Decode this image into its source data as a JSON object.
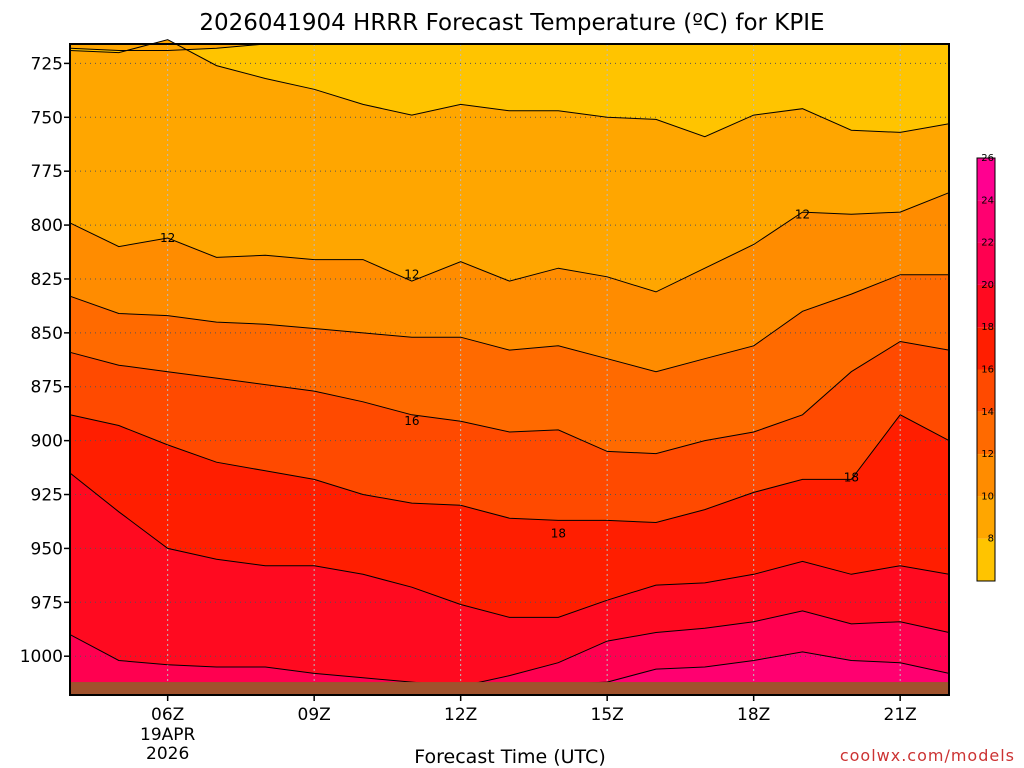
{
  "chart_data": {
    "type": "contour",
    "title": "2026041904 HRRR Forecast Temperature (ºC) for KPIE",
    "xlabel": "Forecast Time (UTC)",
    "ylabel": "",
    "credit": "coolwx.com/models",
    "credit_color": "#cc3333",
    "x_hours": [
      4,
      5,
      6,
      7,
      8,
      9,
      10,
      11,
      12,
      13,
      14,
      15,
      16,
      17,
      18,
      19,
      20,
      21,
      22
    ],
    "x_ticks": [
      {
        "hour": 6,
        "label": "06Z",
        "sub": [
          "19APR",
          "2026"
        ]
      },
      {
        "hour": 9,
        "label": "09Z",
        "sub": []
      },
      {
        "hour": 12,
        "label": "12Z",
        "sub": []
      },
      {
        "hour": 15,
        "label": "15Z",
        "sub": []
      },
      {
        "hour": 18,
        "label": "18Z",
        "sub": []
      },
      {
        "hour": 21,
        "label": "21Z",
        "sub": []
      }
    ],
    "y_ticks": [
      {
        "value": 725,
        "label": "725"
      },
      {
        "value": 750,
        "label": "750"
      },
      {
        "value": 775,
        "label": "775"
      },
      {
        "value": 800,
        "label": "800"
      },
      {
        "value": 825,
        "label": "825"
      },
      {
        "value": 850,
        "label": "850"
      },
      {
        "value": 875,
        "label": "875"
      },
      {
        "value": 900,
        "label": "900"
      },
      {
        "value": 925,
        "label": "925"
      },
      {
        "value": 950,
        "label": "950"
      },
      {
        "value": 975,
        "label": "975"
      },
      {
        "value": 1000,
        "label": "1000"
      }
    ],
    "ylim_hpa": [
      716,
      1018
    ],
    "ground_hpa": 1012,
    "ground_color": "#a0522d",
    "contour_interval": 2,
    "contours": [
      {
        "level": 8,
        "pressures": [
          718,
          719,
          719,
          718,
          716,
          716,
          716,
          716,
          716,
          716,
          716,
          716,
          716,
          716,
          716,
          716,
          716,
          716,
          716
        ]
      },
      {
        "level": 10,
        "pressures": [
          719,
          720,
          714,
          726,
          732,
          737,
          744,
          749,
          744,
          747,
          747,
          750,
          751,
          759,
          749,
          746,
          756,
          757,
          753
        ]
      },
      {
        "level": 12,
        "pressures": [
          799,
          810,
          806,
          815,
          814,
          816,
          816,
          826,
          817,
          826,
          820,
          824,
          831,
          820,
          809,
          794,
          795,
          794,
          785
        ]
      },
      {
        "level": 14,
        "pressures": [
          833,
          841,
          842,
          845,
          846,
          848,
          850,
          852,
          852,
          858,
          856,
          862,
          868,
          862,
          856,
          840,
          832,
          823,
          823
        ]
      },
      {
        "level": 16,
        "pressures": [
          859,
          865,
          868,
          871,
          874,
          877,
          882,
          888,
          891,
          896,
          895,
          905,
          906,
          900,
          896,
          888,
          868,
          854,
          858
        ]
      },
      {
        "level": 18,
        "pressures": [
          888,
          893,
          902,
          910,
          914,
          918,
          925,
          929,
          930,
          936,
          937,
          937,
          938,
          932,
          924,
          918,
          918,
          888,
          900
        ]
      },
      {
        "level": 20,
        "pressures": [
          915,
          933,
          950,
          955,
          958,
          958,
          962,
          968,
          976,
          982,
          982,
          974,
          967,
          966,
          962,
          956,
          962,
          958,
          962
        ]
      },
      {
        "level": 22,
        "pressures": [
          990,
          1002,
          1004,
          1005,
          1005,
          1008,
          1010,
          1012,
          1014,
          1009,
          1003,
          993,
          989,
          987,
          984,
          979,
          985,
          984,
          989
        ]
      },
      {
        "level": 24,
        "pressures": [
          1013,
          1013,
          1013,
          1013,
          1013,
          1013,
          1013,
          1013,
          1013,
          1013,
          1013,
          1012,
          1006,
          1005,
          1002,
          998,
          1002,
          1003,
          1008
        ]
      }
    ],
    "contour_labels": [
      {
        "text": "12",
        "hour": 6.0,
        "hpa": 806
      },
      {
        "text": "12",
        "hour": 11.0,
        "hpa": 823
      },
      {
        "text": "12",
        "hour": 19.0,
        "hpa": 795
      },
      {
        "text": "16",
        "hour": 11.0,
        "hpa": 891
      },
      {
        "text": "18",
        "hour": 14.0,
        "hpa": 943
      },
      {
        "text": "18",
        "hour": 20.0,
        "hpa": 917
      }
    ],
    "colorbar": {
      "levels": [
        8,
        10,
        12,
        14,
        16,
        18,
        20,
        22,
        24,
        26
      ],
      "colors": [
        "#ffc400",
        "#ffa600",
        "#ff8c00",
        "#ff6a00",
        "#ff4a00",
        "#ff1e00",
        "#ff0a20",
        "#ff0050",
        "#ff0070",
        "#ff0090"
      ],
      "tick_labels": [
        "8",
        "10",
        "12",
        "14",
        "16",
        "18",
        "20",
        "22",
        "24",
        "26"
      ]
    }
  }
}
